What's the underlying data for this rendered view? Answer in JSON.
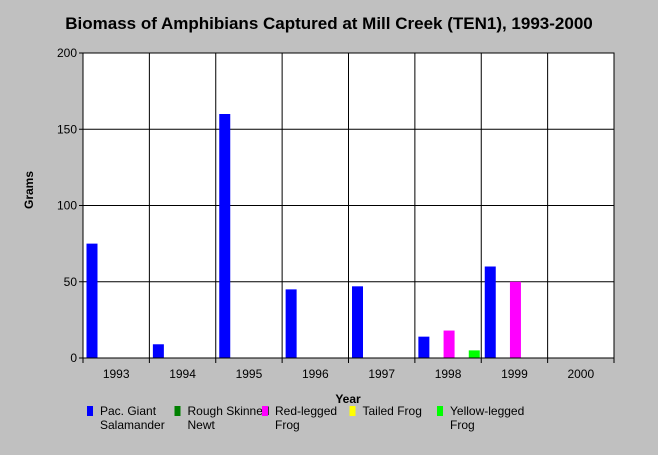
{
  "chart_data": {
    "type": "bar",
    "title": "Biomass of Amphibians Captured at Mill Creek (TEN1), 1993-2000",
    "xlabel": "Year",
    "ylabel": "Grams",
    "ylim": [
      0,
      200
    ],
    "yticks": [
      0,
      50,
      100,
      150,
      200
    ],
    "grid": true,
    "legend_placement": "bottom",
    "categories": [
      "1993",
      "1994",
      "1995",
      "1996",
      "1997",
      "1998",
      "1999",
      "2000"
    ],
    "series": [
      {
        "name": "Pac. Giant Salamander",
        "legend_lines": [
          "Pac. Giant",
          "Salamander"
        ],
        "color": "#0000ff",
        "values": [
          75,
          9,
          160,
          45,
          47,
          14,
          60,
          0
        ]
      },
      {
        "name": "Rough Skinned Newt",
        "legend_lines": [
          "Rough Skinned",
          "Newt"
        ],
        "color": "#008000",
        "values": [
          0,
          0,
          0,
          0,
          0,
          0,
          0,
          0
        ]
      },
      {
        "name": "Red-legged Frog",
        "legend_lines": [
          "Red-legged",
          "Frog"
        ],
        "color": "#ff00ff",
        "values": [
          0,
          0,
          0,
          0,
          0,
          18,
          50,
          0
        ]
      },
      {
        "name": "Tailed Frog",
        "legend_lines": [
          "Tailed Frog"
        ],
        "color": "#ffff00",
        "values": [
          0,
          0,
          0,
          0,
          0,
          0,
          0,
          0
        ]
      },
      {
        "name": "Yellow-legged Frog",
        "legend_lines": [
          "Yellow-legged",
          "Frog"
        ],
        "color": "#00ff00",
        "values": [
          0,
          0,
          0,
          0,
          0,
          5,
          0,
          0
        ]
      }
    ]
  }
}
